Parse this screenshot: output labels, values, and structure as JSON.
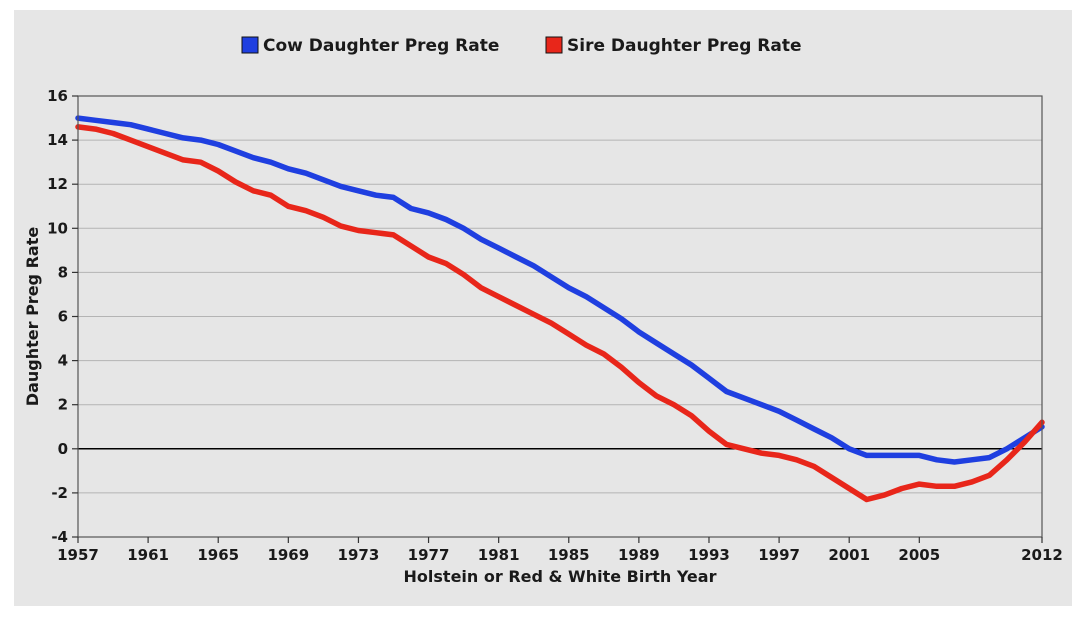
{
  "chart_data": {
    "type": "line",
    "title": "",
    "xlabel": "Holstein or Red & White Birth Year",
    "ylabel": "Daughter Preg Rate",
    "xlim": [
      1957,
      2012
    ],
    "ylim": [
      -4,
      16
    ],
    "x_ticks": [
      1957,
      1961,
      1965,
      1969,
      1973,
      1977,
      1981,
      1985,
      1989,
      1993,
      1997,
      2001,
      2005,
      2012
    ],
    "x_tick_labels": [
      "1957",
      "1961",
      "1965",
      "1969",
      "1973",
      "1977",
      "1981",
      "1985",
      "1989",
      "1993",
      "1997",
      "2001",
      "2005",
      "2012"
    ],
    "y_ticks": [
      -4,
      -2,
      0,
      2,
      4,
      6,
      8,
      10,
      12,
      14,
      16
    ],
    "y_tick_labels": [
      "-4",
      "-2",
      "0",
      "2",
      "4",
      "6",
      "8",
      "10",
      "12",
      "14",
      "16"
    ],
    "grid": true,
    "legend_position": "top-center",
    "x": [
      1957,
      1958,
      1959,
      1960,
      1961,
      1962,
      1963,
      1964,
      1965,
      1966,
      1967,
      1968,
      1969,
      1970,
      1971,
      1972,
      1973,
      1974,
      1975,
      1976,
      1977,
      1978,
      1979,
      1980,
      1981,
      1982,
      1983,
      1984,
      1985,
      1986,
      1987,
      1988,
      1989,
      1990,
      1991,
      1992,
      1993,
      1994,
      1995,
      1996,
      1997,
      1998,
      1999,
      2000,
      2001,
      2002,
      2003,
      2004,
      2005,
      2006,
      2007,
      2008,
      2009,
      2010,
      2011,
      2012
    ],
    "series": [
      {
        "name": "Cow Daughter Preg Rate",
        "color": "#1f3fe0",
        "values": [
          15.0,
          14.9,
          14.8,
          14.7,
          14.5,
          14.3,
          14.1,
          14.0,
          13.8,
          13.5,
          13.2,
          13.0,
          12.7,
          12.5,
          12.2,
          11.9,
          11.7,
          11.5,
          11.4,
          10.9,
          10.7,
          10.4,
          10.0,
          9.5,
          9.1,
          8.7,
          8.3,
          7.8,
          7.3,
          6.9,
          6.4,
          5.9,
          5.3,
          4.8,
          4.3,
          3.8,
          3.2,
          2.6,
          2.3,
          2.0,
          1.7,
          1.3,
          0.9,
          0.5,
          0.0,
          -0.3,
          -0.3,
          -0.3,
          -0.3,
          -0.5,
          -0.6,
          -0.5,
          -0.4,
          0.0,
          0.5,
          1.0
        ]
      },
      {
        "name": "Sire Daughter Preg Rate",
        "color": "#e8261a",
        "values": [
          14.6,
          14.5,
          14.3,
          14.0,
          13.7,
          13.4,
          13.1,
          13.0,
          12.6,
          12.1,
          11.7,
          11.5,
          11.0,
          10.8,
          10.5,
          10.1,
          9.9,
          9.8,
          9.7,
          9.2,
          8.7,
          8.4,
          7.9,
          7.3,
          6.9,
          6.5,
          6.1,
          5.7,
          5.2,
          4.7,
          4.3,
          3.7,
          3.0,
          2.4,
          2.0,
          1.5,
          0.8,
          0.2,
          0.0,
          -0.2,
          -0.3,
          -0.5,
          -0.8,
          -1.3,
          -1.8,
          -2.3,
          -2.1,
          -1.8,
          -1.6,
          -1.7,
          -1.7,
          -1.5,
          -1.2,
          -0.5,
          0.3,
          1.2
        ]
      }
    ]
  }
}
